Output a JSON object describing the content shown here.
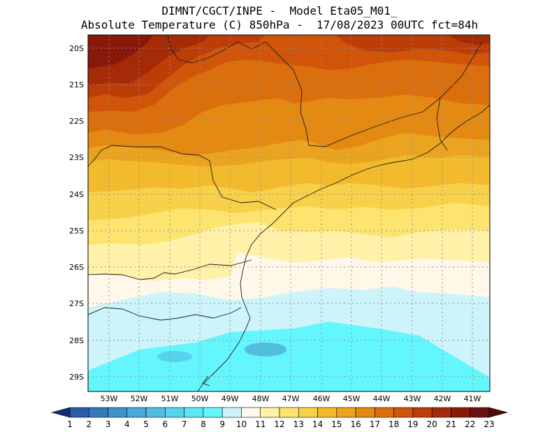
{
  "title_line1": "DIMNT/CGCT/INPE -  Model Eta05_M01_",
  "title_line2": "Absolute Temperature (C) 850hPa -  17/08/2023 00UTC fct=84h",
  "lat_labels": [
    "20S",
    "21S",
    "22S",
    "23S",
    "24S",
    "25S",
    "26S",
    "27S",
    "28S",
    "29S"
  ],
  "lon_labels": [
    "53W",
    "52W",
    "51W",
    "50W",
    "49W",
    "48W",
    "47W",
    "46W",
    "45W",
    "44W",
    "43W",
    "42W",
    "41W"
  ],
  "colorbar": {
    "labels": [
      "1",
      "2",
      "3",
      "4",
      "5",
      "6",
      "7",
      "8",
      "9",
      "10",
      "11",
      "12",
      "13",
      "14",
      "15",
      "16",
      "17",
      "18",
      "19",
      "20",
      "21",
      "22",
      "23"
    ],
    "colors": [
      "#1c3f95",
      "#2a5ba9",
      "#3678b9",
      "#3f92c9",
      "#4aa8d6",
      "#51bde0",
      "#57d2ec",
      "#5de6f6",
      "#63f7fd",
      "#cdf4fb",
      "#fff7e8",
      "#fff1a8",
      "#fde46f",
      "#f8d14a",
      "#f2bb2e",
      "#eba41f",
      "#e48a12",
      "#db6e0d",
      "#d0540a",
      "#bd3d09",
      "#a42a08",
      "#881808",
      "#6a0e0e"
    ],
    "left_arrow_color": "#132e78",
    "right_arrow_color": "#4d0a0a"
  }
}
